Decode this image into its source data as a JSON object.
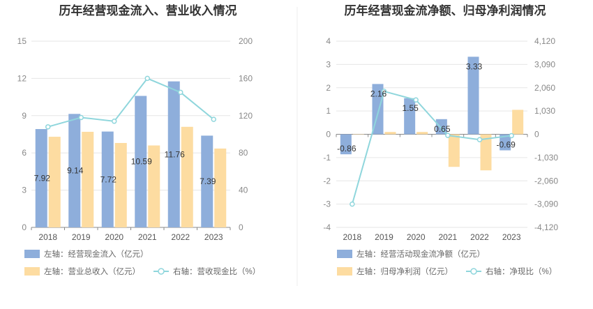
{
  "chart_data": [
    {
      "type": "bar",
      "title": "历年经营现金流入、营业收入情况",
      "categories": [
        "2018",
        "2019",
        "2020",
        "2021",
        "2022",
        "2023"
      ],
      "left_axis": {
        "ticks": [
          "0",
          "3",
          "6",
          "9",
          "12",
          "15"
        ],
        "ylim": [
          0,
          15
        ]
      },
      "right_axis": {
        "ticks": [
          "0",
          "40",
          "80",
          "120",
          "160",
          "200"
        ],
        "ylim": [
          0,
          200
        ]
      },
      "series": [
        {
          "name": "左轴：经营现金流入（亿元）",
          "type": "bar",
          "axis": "left",
          "color": "#8eaedb",
          "values": [
            7.92,
            9.14,
            7.72,
            10.59,
            11.76,
            7.39
          ],
          "labels": [
            "7.92",
            "9.14",
            "7.72",
            "10.59",
            "11.76",
            "7.39"
          ]
        },
        {
          "name": "左轴：营业总收入（亿元）",
          "type": "bar",
          "axis": "left",
          "color": "#fddca1",
          "values": [
            7.3,
            7.7,
            6.8,
            6.6,
            8.1,
            6.35
          ]
        },
        {
          "name": "右轴：营收现金比（%）",
          "type": "line",
          "axis": "right",
          "color": "#8fd6dc",
          "values": [
            108,
            118,
            114,
            160,
            145,
            116
          ]
        }
      ],
      "grid": true,
      "legend": "bottom"
    },
    {
      "type": "bar",
      "title": "历年经营现金流净额、归母净利润情况",
      "categories": [
        "2018",
        "2019",
        "2020",
        "2021",
        "2022",
        "2023"
      ],
      "left_axis": {
        "ticks": [
          "-4",
          "-3",
          "-2",
          "-1",
          "0",
          "1",
          "2",
          "3",
          "4"
        ],
        "ylim": [
          -4,
          4
        ]
      },
      "right_axis": {
        "ticks": [
          "-4,120",
          "-3,090",
          "-2,060",
          "-1,030",
          "0",
          "1,030",
          "2,060",
          "3,090",
          "4,120"
        ],
        "ylim": [
          -4120,
          4120
        ]
      },
      "series": [
        {
          "name": "左轴：经营活动现金流净额（亿元）",
          "type": "bar",
          "axis": "left",
          "color": "#8eaedb",
          "values": [
            -0.86,
            2.16,
            1.55,
            0.65,
            3.33,
            -0.69
          ],
          "labels": [
            "-0.86",
            "2.16",
            "1.55",
            "0.65",
            "3.33",
            "-0.69"
          ]
        },
        {
          "name": "左轴：归母净利润（亿元）",
          "type": "bar",
          "axis": "left",
          "color": "#fddca1",
          "values": [
            0.0,
            0.1,
            0.1,
            -1.4,
            -1.55,
            1.05
          ]
        },
        {
          "name": "右轴：净现比（%）",
          "type": "line",
          "axis": "right",
          "color": "#8fd6dc",
          "values": [
            -3090,
            1900,
            1520,
            -50,
            -240,
            -60
          ]
        }
      ],
      "grid": true,
      "legend": "bottom"
    }
  ]
}
